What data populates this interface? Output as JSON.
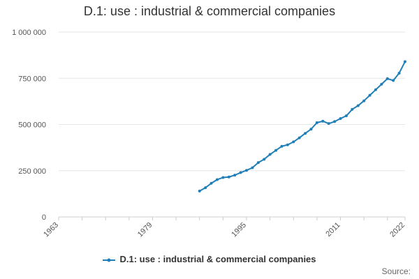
{
  "title": "D.1: use : industrial & commercial companies",
  "source_label": "Source:",
  "colors": {
    "series": "#1f7fb6",
    "grid": "#e6e6e6",
    "axis": "#cccccc"
  },
  "chart_data": {
    "type": "line",
    "title": "D.1: use : industrial & commercial companies",
    "xlabel": "",
    "ylabel": "",
    "xlim": [
      1963,
      2022
    ],
    "ylim": [
      0,
      1000000
    ],
    "x_ticks": [
      1963,
      1979,
      1995,
      2011,
      2022
    ],
    "y_ticks": [
      0,
      250000,
      500000,
      750000,
      1000000
    ],
    "y_tick_labels": [
      "0",
      "250 000",
      "500 000",
      "750 000",
      "1 000 000"
    ],
    "grid": true,
    "legend": "bottom",
    "series": [
      {
        "name": "D.1: use : industrial & commercial companies",
        "x": [
          1987,
          1988,
          1989,
          1990,
          1991,
          1992,
          1993,
          1994,
          1995,
          1996,
          1997,
          1998,
          1999,
          2000,
          2001,
          2002,
          2003,
          2004,
          2005,
          2006,
          2007,
          2008,
          2009,
          2010,
          2011,
          2012,
          2013,
          2014,
          2015,
          2016,
          2017,
          2018,
          2019,
          2020,
          2021,
          2022
        ],
        "values": [
          140000,
          158000,
          182000,
          202000,
          213000,
          216000,
          226000,
          240000,
          252000,
          266000,
          294000,
          312000,
          338000,
          360000,
          382000,
          390000,
          406000,
          428000,
          452000,
          475000,
          510000,
          518000,
          505000,
          516000,
          532000,
          547000,
          582000,
          602000,
          628000,
          658000,
          688000,
          718000,
          748000,
          738000,
          778000,
          840000
        ]
      }
    ]
  }
}
